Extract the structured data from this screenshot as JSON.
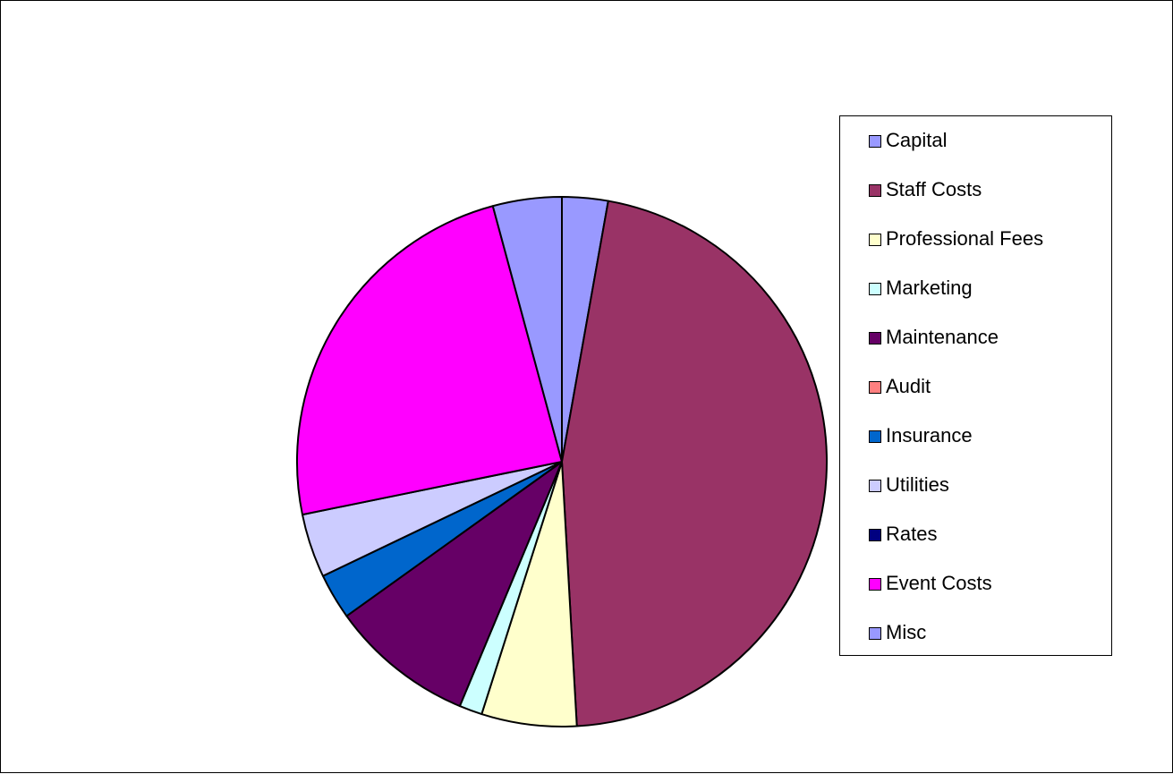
{
  "chart_data": {
    "type": "pie",
    "title": "",
    "categories": [
      "Capital",
      "Staff Costs",
      "Professional Fees",
      "Marketing",
      "Maintenance",
      "Audit",
      "Insurance",
      "Utilities",
      "Rates",
      "Event Costs",
      "Misc"
    ],
    "values": [
      2.8,
      46.3,
      5.8,
      1.4,
      8.8,
      0.0,
      2.8,
      3.9,
      0.0,
      24.0,
      4.2
    ],
    "colors": [
      "#9999FF",
      "#993366",
      "#FFFFCC",
      "#CCFFFF",
      "#660066",
      "#FF8080",
      "#0066CC",
      "#CCCCFF",
      "#000080",
      "#FF00FF",
      "#9999FF"
    ],
    "start_angle": "12 o'clock",
    "direction": "clockwise",
    "legend_position": "right"
  }
}
